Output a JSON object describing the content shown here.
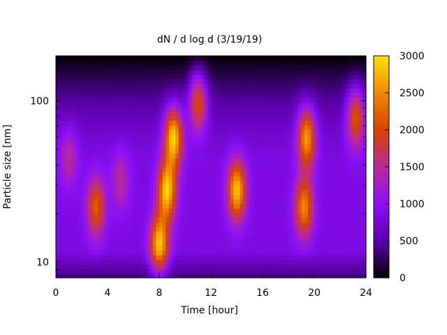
{
  "chart_data": {
    "type": "heatmap",
    "title": "dN / d log d (3/19/19)",
    "xlabel": "Time [hour]",
    "ylabel": "Particle size [nm]",
    "xlim": [
      0,
      24
    ],
    "ylim": [
      8,
      190
    ],
    "yscale": "log",
    "x_ticks": [
      0,
      4,
      8,
      12,
      16,
      20,
      24
    ],
    "x_tick_labels": [
      "0",
      "4",
      "8",
      "12",
      "16",
      "20",
      "24"
    ],
    "y_ticks": [
      10,
      100
    ],
    "y_tick_labels": [
      "10",
      "100"
    ],
    "colorbar": {
      "min": 0,
      "max": 3000,
      "ticks": [
        0,
        500,
        1000,
        1500,
        2000,
        2500,
        3000
      ],
      "tick_labels": [
        "0",
        "500",
        "1000",
        "1500",
        "2000",
        "2500",
        "3000"
      ],
      "colormap": [
        "#000000",
        "#5a00a8",
        "#8c10f8",
        "#b82a9a",
        "#d84200",
        "#f08800",
        "#fce000"
      ]
    },
    "background_level": 850,
    "events": [
      {
        "time_hour": 1.0,
        "size_nm": 45,
        "peak": 1150
      },
      {
        "time_hour": 3.1,
        "size_nm": 22,
        "peak": 1850
      },
      {
        "time_hour": 5.0,
        "size_nm": 32,
        "peak": 1150
      },
      {
        "time_hour": 8.0,
        "size_nm": 13,
        "peak": 2500
      },
      {
        "time_hour": 8.6,
        "size_nm": 28,
        "peak": 2550
      },
      {
        "time_hour": 9.1,
        "size_nm": 60,
        "peak": 2650
      },
      {
        "time_hour": 11.0,
        "size_nm": 100,
        "peak": 2050
      },
      {
        "time_hour": 14.0,
        "size_nm": 28,
        "peak": 2500
      },
      {
        "time_hour": 19.2,
        "size_nm": 22,
        "peak": 2150
      },
      {
        "time_hour": 19.4,
        "size_nm": 60,
        "peak": 2350
      },
      {
        "time_hour": 23.2,
        "size_nm": 80,
        "peak": 2000
      }
    ],
    "grid": false,
    "legend": "colorbar-right"
  }
}
